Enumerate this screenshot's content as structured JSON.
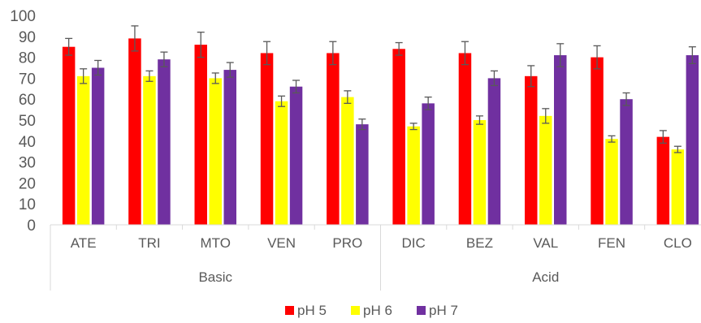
{
  "chart_data": {
    "type": "bar",
    "title": "",
    "xlabel": "",
    "ylabel": "",
    "ylim": [
      0,
      100
    ],
    "yticks": [
      0,
      10,
      20,
      30,
      40,
      50,
      60,
      70,
      80,
      90,
      100
    ],
    "grid": false,
    "legend_position": "bottom",
    "categories": [
      "ATE",
      "TRI",
      "MTO",
      "VEN",
      "PRO",
      "DIC",
      "BEZ",
      "VAL",
      "FEN",
      "CLO"
    ],
    "groups": [
      {
        "label": "Basic",
        "categories": [
          "ATE",
          "TRI",
          "MTO",
          "VEN",
          "PRO"
        ]
      },
      {
        "label": "Acid",
        "categories": [
          "DIC",
          "BEZ",
          "VAL",
          "FEN",
          "CLO"
        ]
      }
    ],
    "series": [
      {
        "name": "pH 5",
        "color": "#ff0000",
        "values": [
          85,
          89,
          86,
          82,
          82,
          84,
          82,
          71,
          80,
          42
        ],
        "errors": [
          4,
          6,
          6,
          5.5,
          5.5,
          3,
          5.5,
          5,
          5.5,
          3
        ]
      },
      {
        "name": "pH 6",
        "color": "#ffff00",
        "values": [
          71,
          71,
          70,
          59,
          61,
          47,
          50,
          52,
          41,
          36
        ],
        "errors": [
          3.5,
          2.5,
          2.5,
          2.5,
          3,
          1.5,
          2,
          3.5,
          1.5,
          1.5
        ]
      },
      {
        "name": "pH 7",
        "color": "#7030a0",
        "values": [
          75,
          79,
          74,
          66,
          48,
          58,
          70,
          81,
          60,
          81
        ],
        "errors": [
          3.5,
          3.5,
          3.5,
          3,
          2.5,
          3,
          3.5,
          5.5,
          3,
          4
        ]
      }
    ]
  }
}
